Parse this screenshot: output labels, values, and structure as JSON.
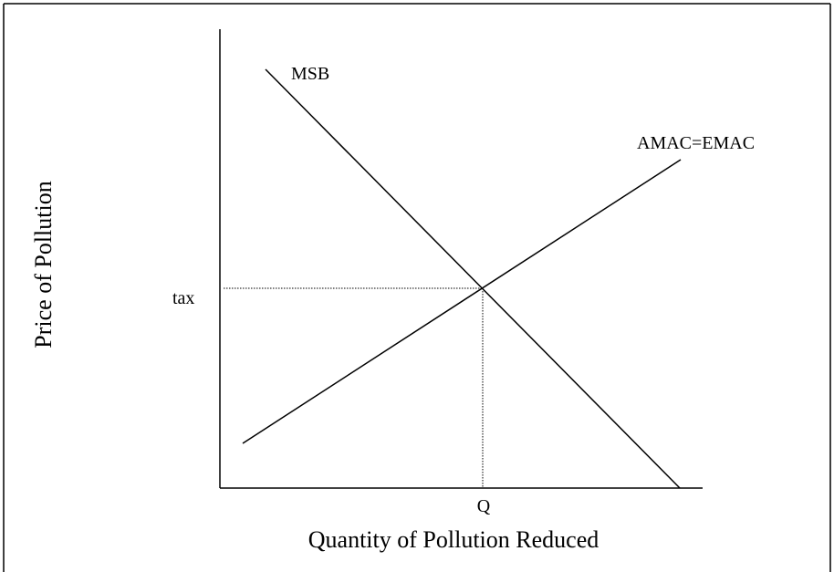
{
  "diagram": {
    "curves": {
      "msb": "MSB",
      "mac": "AMAC=EMAC"
    },
    "price_label": "tax",
    "quantity_label": "Q",
    "x_axis_title": "Quantity of Pollution Reduced",
    "y_axis_title": "Price of Pollution"
  }
}
